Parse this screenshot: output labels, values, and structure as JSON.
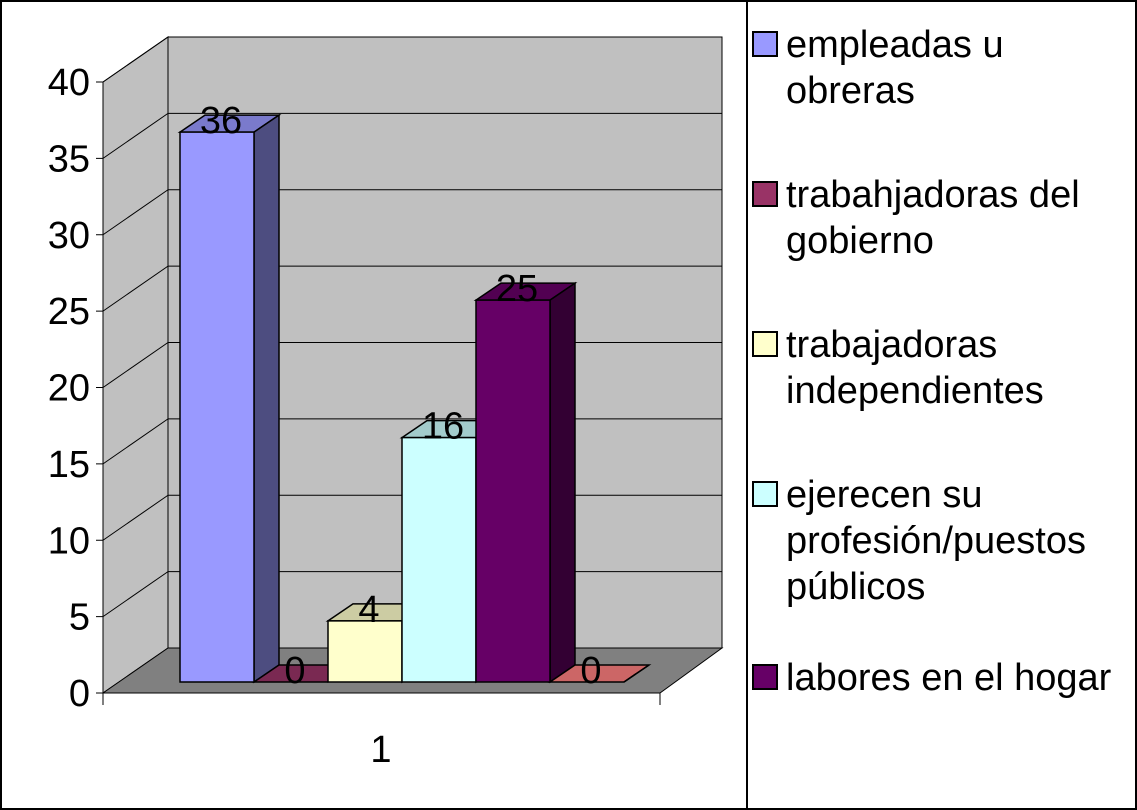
{
  "chart_data": {
    "type": "bar3d",
    "categories": [
      "1"
    ],
    "series": [
      {
        "name": "empleadas u obreras",
        "color": "#9999ff",
        "values": [
          36
        ]
      },
      {
        "name": "trabahjadoras del gobierno",
        "color": "#993366",
        "values": [
          0
        ]
      },
      {
        "name": "trabajadoras independientes",
        "color": "#ffffcc",
        "values": [
          4
        ]
      },
      {
        "name": "ejerecen su profesión/puestos públicos",
        "color": "#ccffff",
        "values": [
          16
        ]
      },
      {
        "name": "labores en el hogar",
        "color": "#660066",
        "values": [
          25
        ]
      },
      {
        "color": "#ff8080",
        "values": [
          0
        ]
      }
    ],
    "ylim": [
      0,
      40
    ],
    "yticks": [
      0,
      5,
      10,
      15,
      20,
      25,
      30,
      35,
      40
    ],
    "grid": true
  }
}
